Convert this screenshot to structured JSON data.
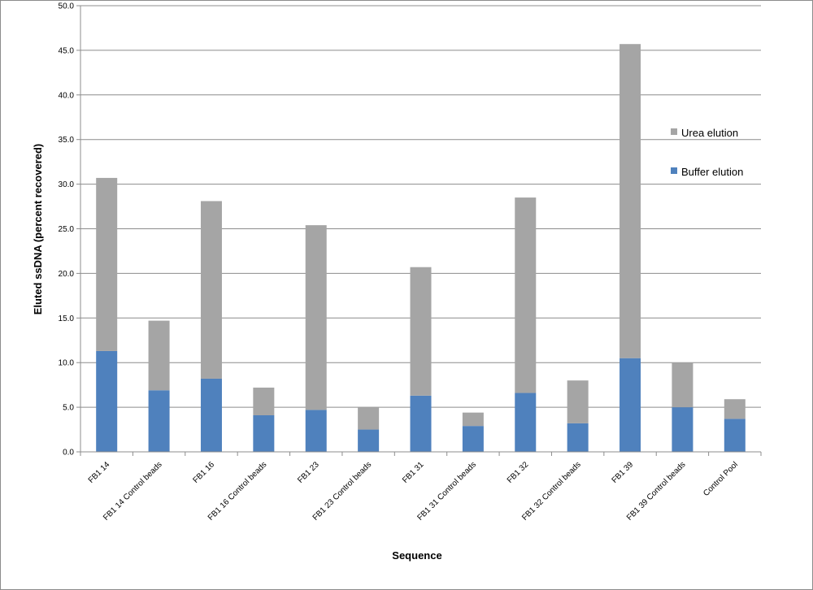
{
  "chart_data": {
    "type": "bar",
    "stacked": true,
    "xlabel": "Sequence",
    "ylabel": "Eluted ssDNA  (percent recovered)",
    "ylim": [
      0,
      50
    ],
    "ytick_step": 5,
    "ytick_labels": [
      "0.0",
      "5.0",
      "10.0",
      "15.0",
      "20.0",
      "25.0",
      "30.0",
      "35.0",
      "40.0",
      "45.0",
      "50.0"
    ],
    "grid": true,
    "legend_position": "right",
    "categories": [
      "FB1 14",
      "FB1 14 Control beads",
      "FB1 16",
      "FB1 16 Control beads",
      "FB1 23",
      "FB1 23 Control beads",
      "FB1 31",
      "FB1 31 Control beads",
      "FB1 32",
      "FB1 32 Control beads",
      "FB1 39",
      "FB1 39 Control beads",
      "Control Pool"
    ],
    "series": [
      {
        "name": "Buffer elution",
        "color": "#4f81bd",
        "values": [
          11.3,
          6.9,
          8.2,
          4.1,
          4.7,
          2.5,
          6.3,
          2.9,
          6.6,
          3.2,
          10.5,
          5.0,
          3.7
        ]
      },
      {
        "name": "Urea elution",
        "color": "#a5a5a5",
        "values": [
          19.4,
          7.8,
          19.9,
          3.1,
          20.7,
          2.5,
          14.4,
          1.5,
          21.9,
          4.8,
          35.2,
          5.0,
          2.2
        ]
      }
    ],
    "legend_order": [
      "Urea elution",
      "Buffer elution"
    ]
  }
}
